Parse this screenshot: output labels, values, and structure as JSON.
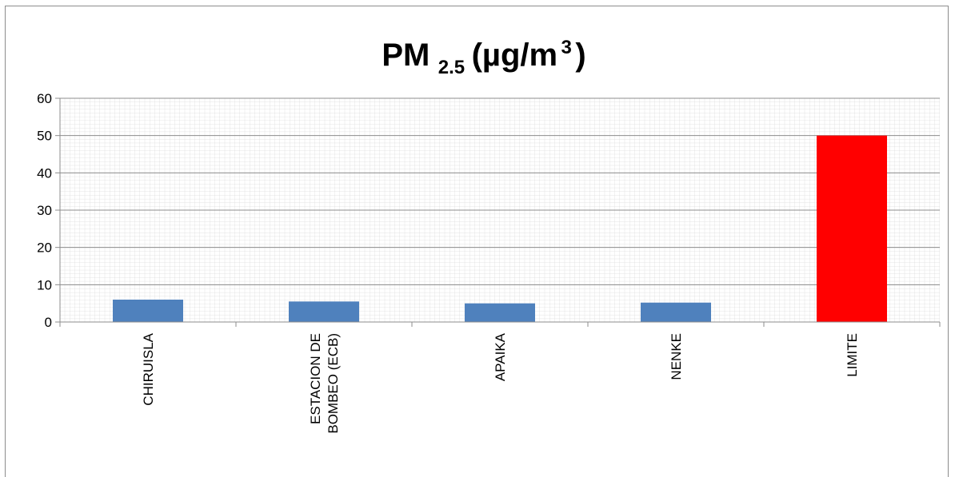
{
  "chart_data": {
    "type": "bar",
    "title": {
      "main": "PM",
      "subscript": "2.5",
      "unit_open": "(µg/m",
      "unit_superscript": "3",
      "unit_close": ")"
    },
    "categories": [
      [
        "CHIRUISLA"
      ],
      [
        "ESTACION DE",
        "BOMBEO (ECB)"
      ],
      [
        "APAIKA"
      ],
      [
        "NENKE"
      ],
      [
        "LIMITE"
      ]
    ],
    "values": [
      6,
      5.5,
      5,
      5.2,
      50
    ],
    "bar_colors": [
      "#4f81bd",
      "#4f81bd",
      "#4f81bd",
      "#4f81bd",
      "#ff0000"
    ],
    "ylim": [
      0,
      60
    ],
    "y_ticks": [
      "0",
      "10",
      "20",
      "30",
      "40",
      "50",
      "60"
    ],
    "xlabel": "",
    "ylabel": "",
    "grid": true,
    "legend": "none"
  }
}
